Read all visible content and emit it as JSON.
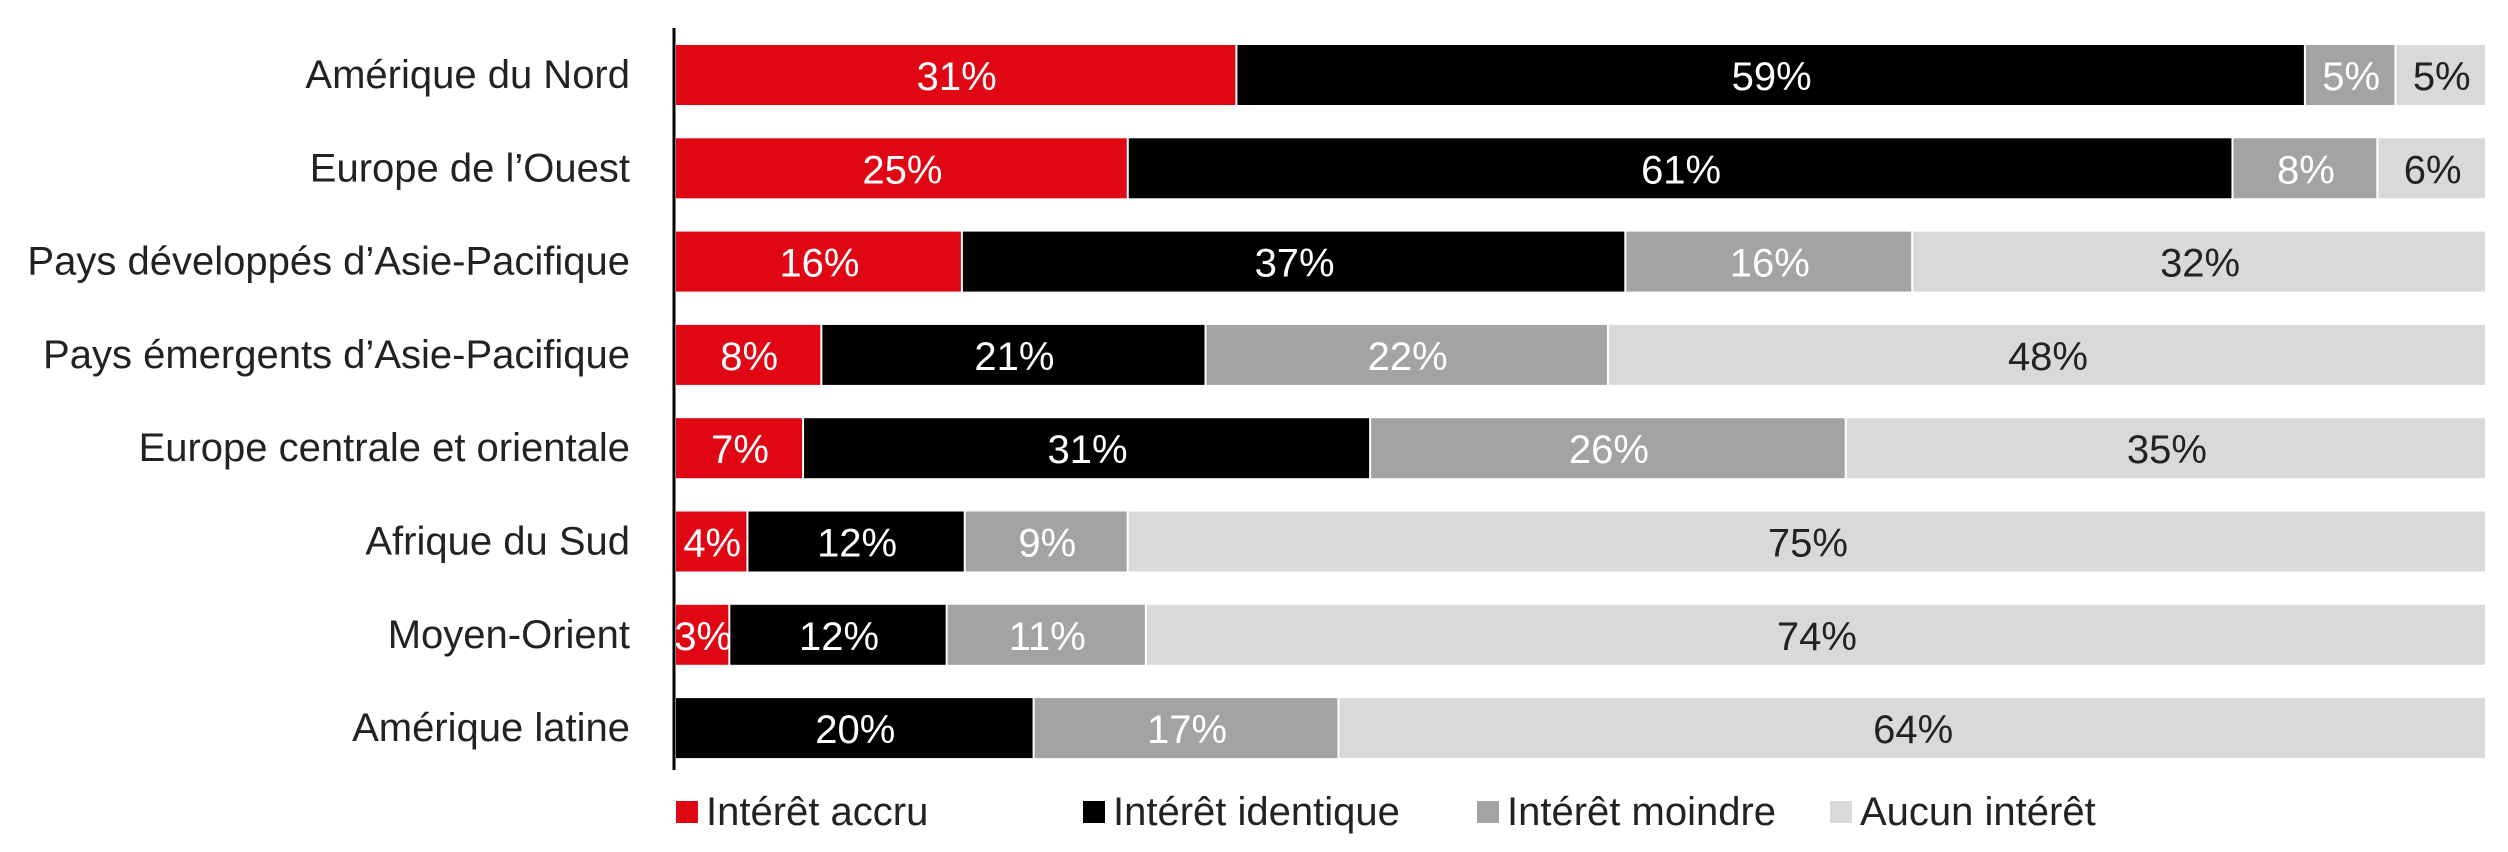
{
  "chart_data": {
    "type": "bar",
    "orientation": "horizontal",
    "stacked": true,
    "categories": [
      "Amérique du Nord",
      "Europe de l’Ouest",
      "Pays développés d’Asie-Pacifique",
      "Pays émergents d’Asie-Pacifique",
      "Europe centrale et orientale",
      "Afrique du Sud",
      "Moyen-Orient",
      "Amérique latine"
    ],
    "series": [
      {
        "name": "Intérêt accru",
        "color": "#e00614",
        "label_color": "#ffffff",
        "values": [
          31,
          25,
          16,
          8,
          7,
          4,
          3,
          0
        ]
      },
      {
        "name": "Intérêt identique",
        "color": "#000000",
        "label_color": "#ffffff",
        "values": [
          59,
          61,
          37,
          21,
          31,
          12,
          12,
          20
        ]
      },
      {
        "name": "Intérêt moindre",
        "color": "#a3a3a3",
        "label_color": "#ffffff",
        "values": [
          5,
          8,
          16,
          22,
          26,
          9,
          11,
          17
        ]
      },
      {
        "name": "Aucun intérêt",
        "color": "#d9d9d9",
        "label_color": "#222222",
        "values": [
          5,
          6,
          32,
          48,
          35,
          75,
          74,
          64
        ]
      }
    ],
    "value_suffix": "%",
    "legend_position": "bottom",
    "grid": false
  }
}
